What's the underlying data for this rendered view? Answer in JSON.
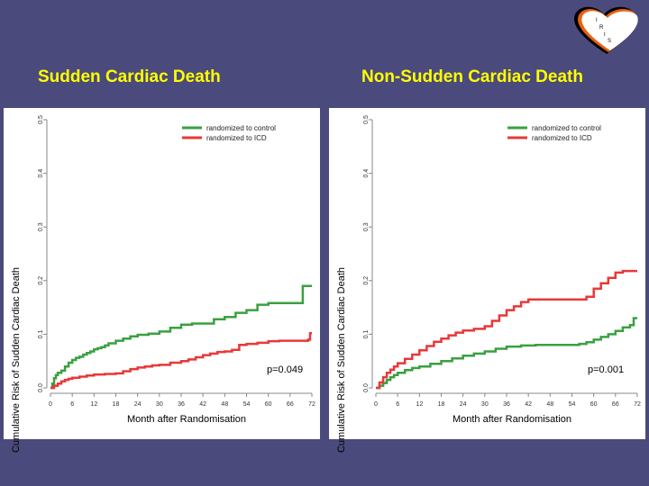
{
  "titles": {
    "left": "Sudden Cardiac Death",
    "right": "Non-Sudden Cardiac Death"
  },
  "logo": {
    "letters": [
      "I",
      "R",
      "I",
      "S"
    ],
    "colors": [
      "#000000",
      "#e86010",
      "#ffffff"
    ]
  },
  "chart_data": [
    {
      "type": "line",
      "title": "Sudden Cardiac Death",
      "xlabel": "Month after Randomisation",
      "ylabel": "Cumulative Risk of Sudden Cardiac Death",
      "xlim": [
        0,
        72
      ],
      "ylim": [
        0,
        0.5
      ],
      "x_ticks": [
        "0",
        "6",
        "12",
        "18",
        "24",
        "30",
        "36",
        "42",
        "48",
        "54",
        "60",
        "66",
        "72"
      ],
      "y_ticks": [
        "0.0",
        "0.1",
        "0.2",
        "0.3",
        "0.4",
        "0.5"
      ],
      "legend_position": "top-right",
      "annotation": "p=0.049",
      "series": [
        {
          "name": "randomized to control",
          "color": "#3aa040",
          "x": [
            0,
            0.5,
            1,
            1.5,
            2,
            3,
            4,
            5,
            6,
            7,
            8,
            9,
            10,
            11,
            12,
            13,
            14,
            15,
            16,
            18,
            20,
            22,
            24,
            27,
            30,
            33,
            36,
            39,
            42,
            45,
            48,
            51,
            54,
            57,
            60,
            63,
            66,
            69,
            69.5,
            72
          ],
          "y": [
            0,
            0.008,
            0.018,
            0.024,
            0.028,
            0.032,
            0.04,
            0.047,
            0.052,
            0.056,
            0.058,
            0.062,
            0.065,
            0.068,
            0.072,
            0.074,
            0.076,
            0.079,
            0.083,
            0.088,
            0.092,
            0.096,
            0.099,
            0.101,
            0.105,
            0.112,
            0.118,
            0.12,
            0.12,
            0.128,
            0.132,
            0.14,
            0.145,
            0.155,
            0.158,
            0.158,
            0.158,
            0.158,
            0.19,
            0.19
          ]
        },
        {
          "name": "randomized to ICD",
          "color": "#e83838",
          "x": [
            0,
            1,
            2,
            3,
            4,
            5,
            6,
            8,
            10,
            12,
            15,
            18,
            20,
            22,
            24,
            26,
            28,
            30,
            33,
            36,
            38,
            40,
            42,
            44,
            46,
            48,
            50,
            52,
            54,
            57,
            60,
            63,
            66,
            69,
            71,
            71.5,
            72
          ],
          "y": [
            0,
            0.004,
            0.008,
            0.012,
            0.015,
            0.017,
            0.019,
            0.021,
            0.023,
            0.025,
            0.026,
            0.027,
            0.031,
            0.035,
            0.038,
            0.04,
            0.042,
            0.043,
            0.047,
            0.05,
            0.053,
            0.057,
            0.061,
            0.064,
            0.067,
            0.068,
            0.071,
            0.08,
            0.082,
            0.084,
            0.087,
            0.088,
            0.088,
            0.088,
            0.09,
            0.102,
            0.102
          ]
        }
      ]
    },
    {
      "type": "line",
      "title": "Non-Sudden Cardiac Death",
      "xlabel": "Month after Randomisation",
      "ylabel": "Cumulative Risk of Sudden Cardiac Death",
      "xlim": [
        0,
        72
      ],
      "ylim": [
        0,
        0.5
      ],
      "x_ticks": [
        "0",
        "6",
        "12",
        "18",
        "24",
        "30",
        "36",
        "42",
        "48",
        "54",
        "60",
        "66",
        "72"
      ],
      "y_ticks": [
        "0.0",
        "0.1",
        "0.2",
        "0.3",
        "0.4",
        "0.5"
      ],
      "legend_position": "top-right",
      "annotation": "p=0.001",
      "series": [
        {
          "name": "randomized to control",
          "color": "#3aa040",
          "x": [
            0,
            1,
            2,
            3,
            4,
            5,
            6,
            8,
            10,
            12,
            15,
            18,
            21,
            24,
            27,
            30,
            33,
            36,
            40,
            44,
            48,
            52,
            56,
            58,
            60,
            62,
            64,
            66,
            68,
            70,
            71,
            72
          ],
          "y": [
            0,
            0.004,
            0.009,
            0.015,
            0.02,
            0.024,
            0.028,
            0.033,
            0.037,
            0.04,
            0.045,
            0.05,
            0.055,
            0.06,
            0.064,
            0.068,
            0.073,
            0.077,
            0.079,
            0.08,
            0.08,
            0.08,
            0.082,
            0.085,
            0.09,
            0.095,
            0.1,
            0.106,
            0.113,
            0.117,
            0.13,
            0.13
          ]
        },
        {
          "name": "randomized to ICD",
          "color": "#e83838",
          "x": [
            0,
            1,
            2,
            3,
            4,
            5,
            6,
            8,
            10,
            12,
            14,
            16,
            18,
            20,
            22,
            24,
            27,
            30,
            32,
            34,
            36,
            38,
            40,
            42,
            48,
            54,
            58,
            60,
            62,
            64,
            66,
            68,
            72
          ],
          "y": [
            0,
            0.01,
            0.02,
            0.028,
            0.034,
            0.04,
            0.046,
            0.054,
            0.062,
            0.07,
            0.078,
            0.086,
            0.092,
            0.098,
            0.103,
            0.107,
            0.11,
            0.115,
            0.125,
            0.135,
            0.145,
            0.152,
            0.16,
            0.165,
            0.165,
            0.165,
            0.17,
            0.185,
            0.195,
            0.205,
            0.215,
            0.218,
            0.218
          ]
        }
      ]
    }
  ]
}
